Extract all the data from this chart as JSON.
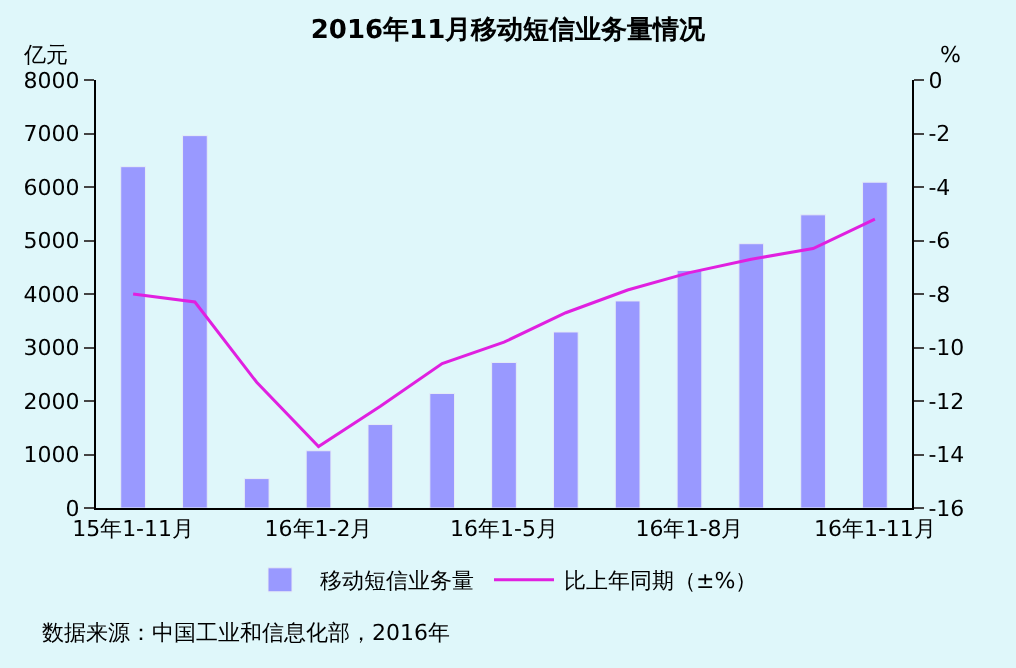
{
  "chart_data": {
    "type": "bar",
    "title": "2016年11月移动短信业务量情况",
    "ylabel": "亿元",
    "y2label": "%",
    "categories": [
      "15年1-11月",
      null,
      null,
      "16年1-2月",
      null,
      null,
      "16年1-5月",
      null,
      null,
      "16年1-8月",
      null,
      null,
      "16年1-11月"
    ],
    "series": [
      {
        "name": "移动短信业务量",
        "color": "#9999ff",
        "values": [
          6380,
          6960,
          550,
          1070,
          1560,
          2140,
          2720,
          3290,
          3870,
          4440,
          4940,
          5480,
          6090
        ]
      },
      {
        "name": "比上年同期（±%）",
        "type": "line",
        "axis": "y2",
        "color": "#e020e0",
        "marker": "none",
        "line_style": "solid",
        "values": [
          -8.0,
          -8.3,
          -11.3,
          -13.7,
          -12.2,
          -10.6,
          -9.8,
          -8.7,
          -7.85,
          -7.2,
          -6.7,
          -6.3,
          -5.2
        ]
      }
    ],
    "ylim": [
      0,
      8000
    ],
    "yticks": [
      0,
      1000,
      2000,
      3000,
      4000,
      5000,
      6000,
      7000,
      8000
    ],
    "y2lim": [
      -16,
      0
    ],
    "y2ticks": [
      -16,
      -14,
      -12,
      -10,
      -8,
      -6,
      -4,
      -2,
      0
    ],
    "grid": false,
    "legend": "bottom",
    "annotations": [
      "数据来源：中国工业和信息化部，2016年"
    ]
  }
}
